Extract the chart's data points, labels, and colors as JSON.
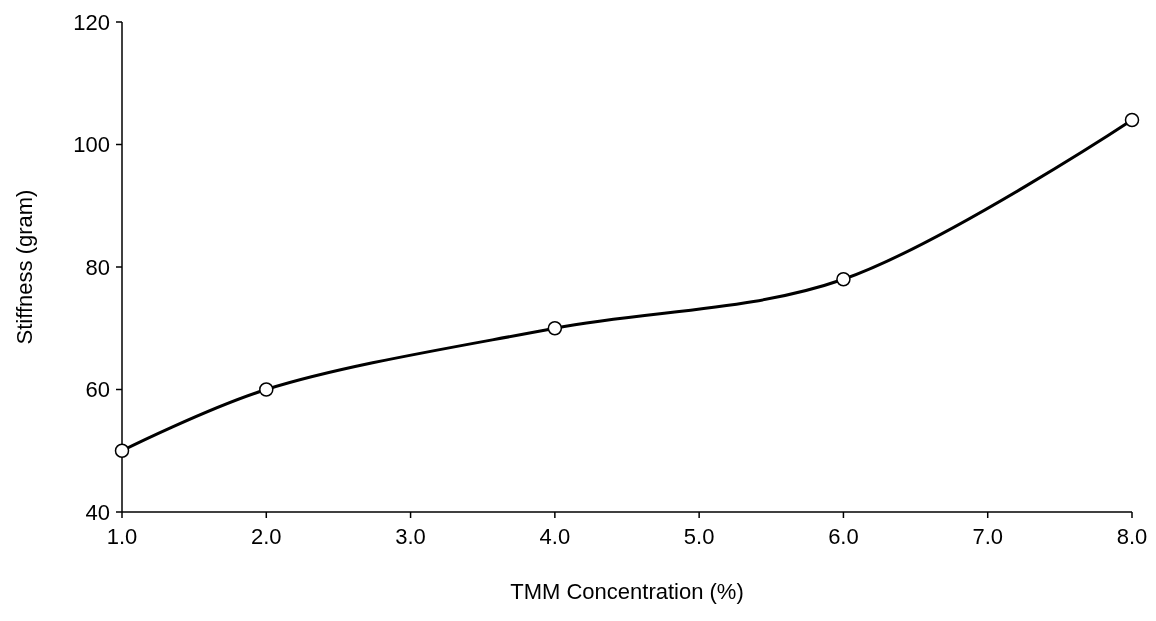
{
  "chart_data": {
    "type": "line",
    "xlabel": "TMM Concentration (%)",
    "ylabel": "Stiffness (gram)",
    "x": [
      1,
      2,
      4,
      6,
      8
    ],
    "series": [
      {
        "color": "#000000",
        "values": [
          50,
          60,
          70,
          78,
          104
        ]
      }
    ],
    "xlim": [
      1,
      8
    ],
    "xticks": [
      {
        "value": 1,
        "label": "1.0"
      },
      {
        "value": 2,
        "label": "2.0"
      },
      {
        "value": 3,
        "label": "3.0"
      },
      {
        "value": 4,
        "label": "4.0"
      },
      {
        "value": 5,
        "label": "5.0"
      },
      {
        "value": 6,
        "label": "6.0"
      },
      {
        "value": 7,
        "label": "7.0"
      },
      {
        "value": 8,
        "label": "8.0"
      }
    ],
    "ylim": [
      40,
      120
    ],
    "yticks": [
      40,
      60,
      80,
      100,
      120
    ],
    "marker": "circle",
    "line_style": "solid"
  }
}
